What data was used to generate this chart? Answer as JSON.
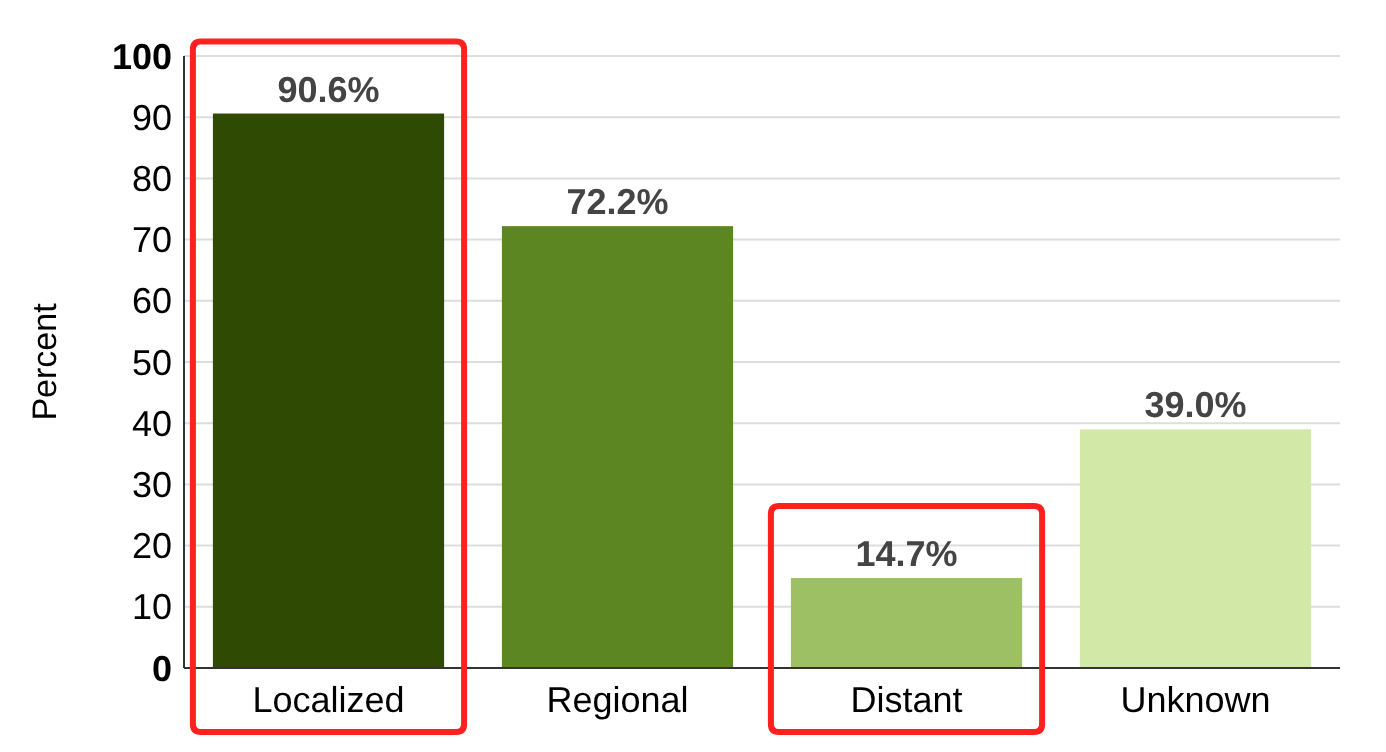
{
  "chart_data": {
    "type": "bar",
    "ylabel": "Percent",
    "categories": [
      "Localized",
      "Regional",
      "Distant",
      "Unknown"
    ],
    "values": [
      90.6,
      72.2,
      14.7,
      39.0
    ],
    "colors": [
      "#2e4a03",
      "#5b8621",
      "#9cc063",
      "#d1e8a7"
    ],
    "value_labels": [
      "90.6%",
      "72.2%",
      "14.7%",
      "39.0%"
    ],
    "bands": [
      {
        "axis": "x",
        "from": "Localized",
        "to": "Localized",
        "color": "#ff2020"
      },
      {
        "axis": "x",
        "from": "Distant",
        "to": "Distant",
        "color": "#ff2020"
      }
    ],
    "ylim": [
      0,
      100
    ],
    "yticks": [
      0,
      10,
      20,
      30,
      40,
      50,
      60,
      70,
      80,
      90,
      100
    ],
    "grid": "y"
  }
}
